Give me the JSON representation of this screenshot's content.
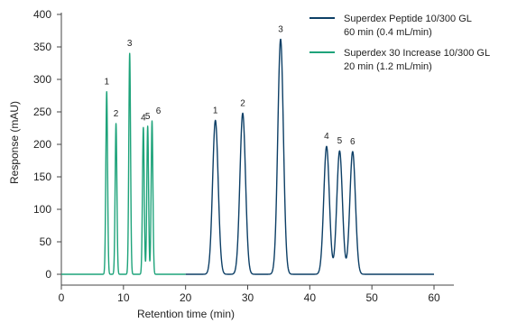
{
  "chart_data": {
    "type": "line",
    "title": "",
    "xlabel": "Retention time (min)",
    "ylabel": "Response (mAU)",
    "xlim": [
      0,
      63
    ],
    "ylim": [
      0,
      400
    ],
    "xticks": [
      0,
      10,
      20,
      30,
      40,
      50,
      60
    ],
    "yticks": [
      0,
      50,
      100,
      150,
      200,
      250,
      300,
      350,
      400
    ],
    "legend_position": "top-right",
    "series": [
      {
        "name": "Superdex Peptide 10/300 GL",
        "name_line2": "60 min (0.4 mL/min)",
        "color": "#0d3f66",
        "x_start": 20,
        "x_end": 60,
        "baseline": 0,
        "peaks": [
          {
            "label": "1",
            "x": 24.8,
            "y": 237
          },
          {
            "label": "2",
            "x": 29.2,
            "y": 248
          },
          {
            "label": "3",
            "x": 35.3,
            "y": 362
          },
          {
            "label": "4",
            "x": 42.7,
            "y": 197
          },
          {
            "label": "5",
            "x": 44.8,
            "y": 190
          },
          {
            "label": "6",
            "x": 46.9,
            "y": 189
          }
        ]
      },
      {
        "name": "Superdex 30 Increase 10/300 GL",
        "name_line2": "20 min (1.2 mL/min)",
        "color": "#1ea37a",
        "x_start": 0,
        "x_end": 20,
        "baseline": 0,
        "peaks": [
          {
            "label": "1",
            "x": 7.3,
            "y": 281
          },
          {
            "label": "2",
            "x": 8.8,
            "y": 232
          },
          {
            "label": "3",
            "x": 11.0,
            "y": 340
          },
          {
            "label": "4",
            "x": 13.2,
            "y": 226
          },
          {
            "label": "5",
            "x": 13.9,
            "y": 228
          },
          {
            "label": "6",
            "x": 14.6,
            "y": 236
          }
        ]
      }
    ]
  }
}
